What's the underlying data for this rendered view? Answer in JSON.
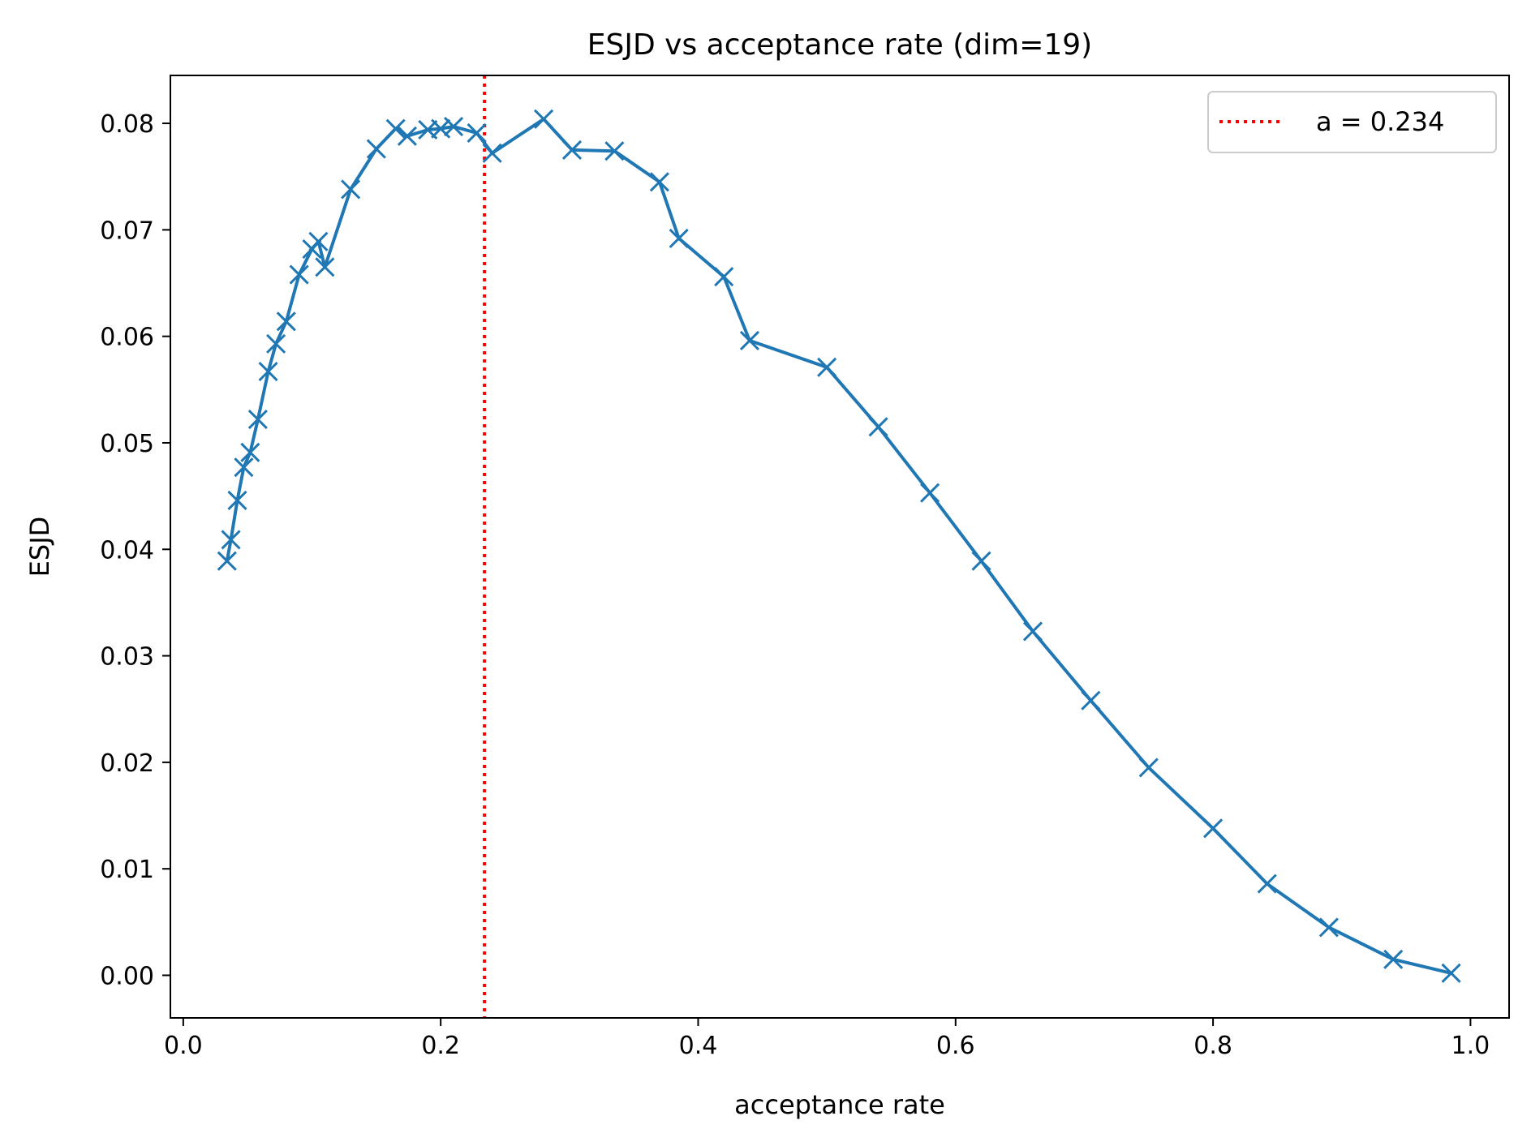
{
  "chart_data": {
    "type": "line",
    "title": "ESJD vs acceptance rate (dim=19)",
    "xlabel": "acceptance rate",
    "ylabel": "ESJD",
    "xlim": [
      -0.01,
      1.03
    ],
    "ylim": [
      -0.004,
      0.0845
    ],
    "xticks": [
      0.0,
      0.2,
      0.4,
      0.6,
      0.8,
      1.0
    ],
    "xtick_labels": [
      "0.0",
      "0.2",
      "0.4",
      "0.6",
      "0.8",
      "1.0"
    ],
    "yticks": [
      0.0,
      0.01,
      0.02,
      0.03,
      0.04,
      0.05,
      0.06,
      0.07,
      0.08
    ],
    "ytick_labels": [
      "0.00",
      "0.01",
      "0.02",
      "0.03",
      "0.04",
      "0.05",
      "0.06",
      "0.07",
      "0.08"
    ],
    "grid": false,
    "legend_position": "top-right",
    "series": [
      {
        "color": "#1f77b4",
        "marker": "x",
        "points": [
          [
            0.034,
            0.0389
          ],
          [
            0.037,
            0.0409
          ],
          [
            0.042,
            0.0446
          ],
          [
            0.047,
            0.0477
          ],
          [
            0.052,
            0.0491
          ],
          [
            0.058,
            0.0522
          ],
          [
            0.066,
            0.0567
          ],
          [
            0.072,
            0.0593
          ],
          [
            0.08,
            0.0614
          ],
          [
            0.09,
            0.0658
          ],
          [
            0.1,
            0.0682
          ],
          [
            0.105,
            0.0689
          ],
          [
            0.11,
            0.0665
          ],
          [
            0.13,
            0.0738
          ],
          [
            0.15,
            0.0776
          ],
          [
            0.165,
            0.0795
          ],
          [
            0.174,
            0.0788
          ],
          [
            0.19,
            0.0794
          ],
          [
            0.2,
            0.0795
          ],
          [
            0.21,
            0.0797
          ],
          [
            0.228,
            0.0791
          ],
          [
            0.24,
            0.0772
          ],
          [
            0.28,
            0.0804
          ],
          [
            0.302,
            0.0775
          ],
          [
            0.335,
            0.0774
          ],
          [
            0.37,
            0.0745
          ],
          [
            0.385,
            0.0692
          ],
          [
            0.42,
            0.0656
          ],
          [
            0.44,
            0.0596
          ],
          [
            0.5,
            0.0571
          ],
          [
            0.54,
            0.0515
          ],
          [
            0.58,
            0.0453
          ],
          [
            0.62,
            0.0389
          ],
          [
            0.66,
            0.0323
          ],
          [
            0.705,
            0.0258
          ],
          [
            0.75,
            0.0195
          ],
          [
            0.8,
            0.0138
          ],
          [
            0.842,
            0.0086
          ],
          [
            0.89,
            0.0045
          ],
          [
            0.94,
            0.0015
          ],
          [
            0.985,
            0.0002
          ]
        ]
      }
    ],
    "reference_line": {
      "orientation": "vertical",
      "x": 0.234,
      "label": "a = 0.234",
      "color": "#ff0000",
      "style": "dotted"
    }
  }
}
